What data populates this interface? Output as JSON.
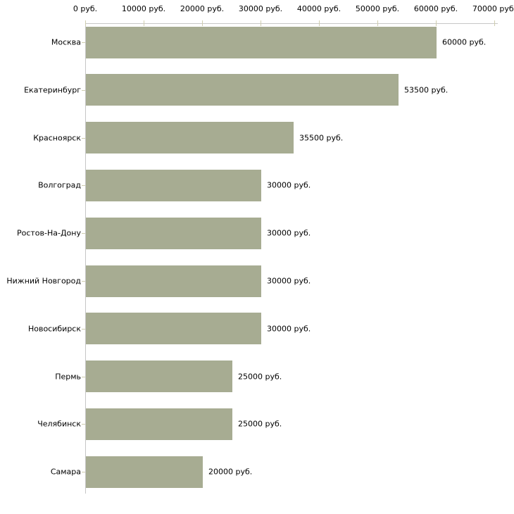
{
  "chart_data": {
    "type": "bar",
    "orientation": "horizontal",
    "title": "",
    "categories": [
      "Москва",
      "Екатеринбург",
      "Красноярск",
      "Волгоград",
      "Ростов-На-Дону",
      "Нижний Новгород",
      "Новосибирск",
      "Пермь",
      "Челябинск",
      "Самара"
    ],
    "values": [
      60000,
      53500,
      35500,
      30000,
      30000,
      30000,
      30000,
      25000,
      25000,
      20000
    ],
    "value_labels": [
      "60000 руб.",
      "53500 руб.",
      "35500 руб.",
      "30000 руб.",
      "30000 руб.",
      "30000 руб.",
      "30000 руб.",
      "25000 руб.",
      "25000 руб.",
      "20000 руб."
    ],
    "x_ticks": [
      0,
      10000,
      20000,
      30000,
      40000,
      50000,
      60000,
      70000
    ],
    "x_tick_labels": [
      "0 руб.",
      "10000 руб.",
      "20000 руб.",
      "30000 руб.",
      "40000 руб.",
      "50000 руб.",
      "60000 руб.",
      "70000 руб."
    ],
    "xlim": [
      0,
      70000
    ],
    "unit": "руб.",
    "xlabel": "",
    "ylabel": "",
    "grid": false,
    "legend": null,
    "colors": {
      "bar": "#a7ac92",
      "axis": "#c6c6c6",
      "tick": "#cfcdaf",
      "text": "#000000",
      "background": "#ffffff"
    }
  }
}
